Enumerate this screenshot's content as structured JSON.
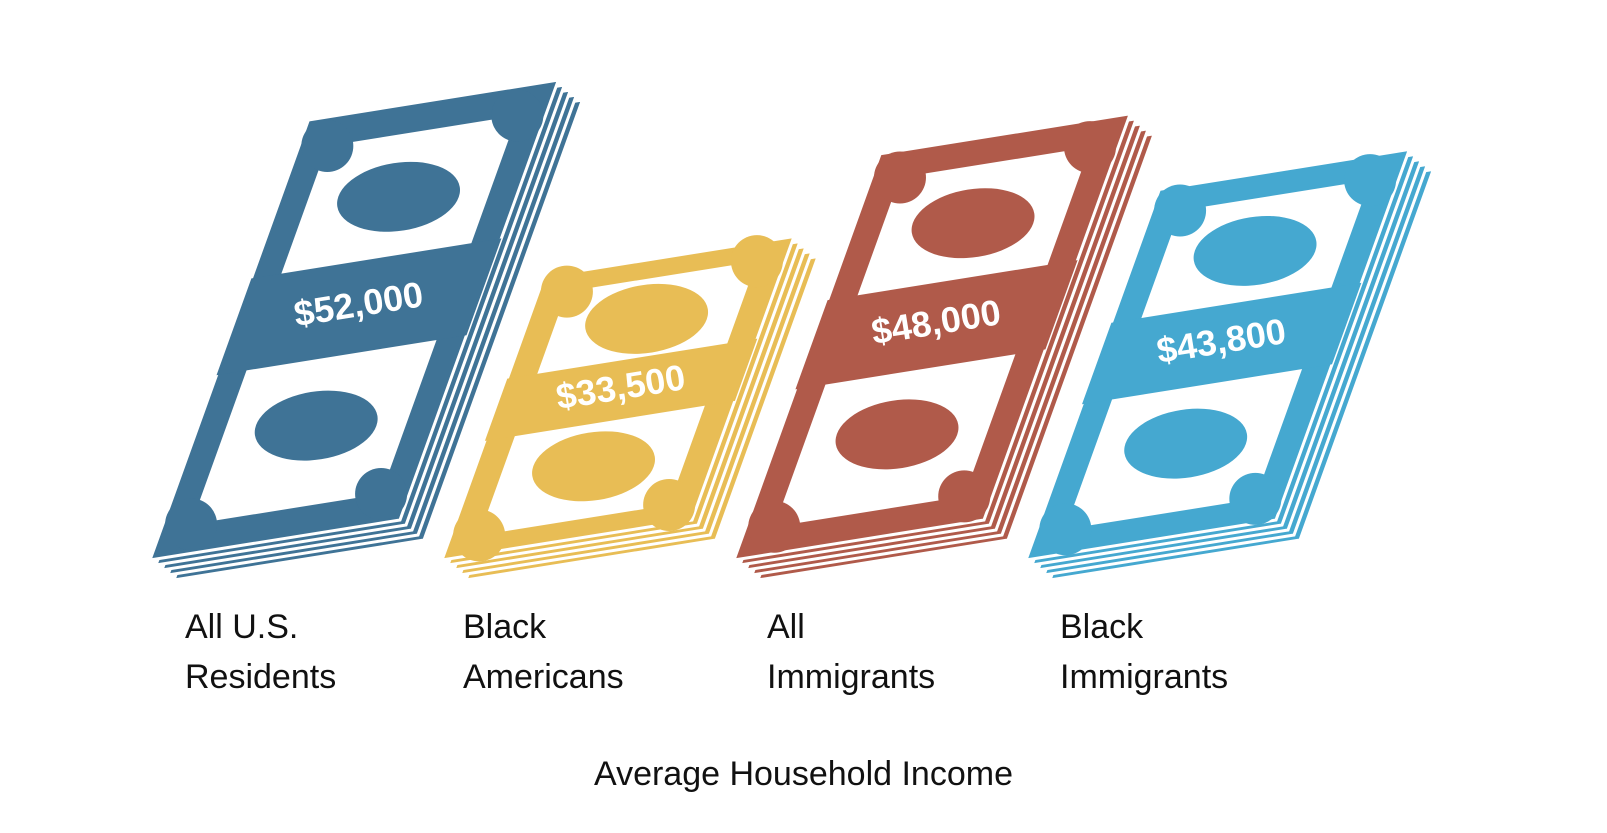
{
  "chart_data": {
    "type": "bar",
    "title": "Average Household Income",
    "categories": [
      "All U.S. Residents",
      "Black Americans",
      "All Immigrants",
      "Black Immigrants"
    ],
    "values": [
      52000,
      33500,
      48000,
      43800
    ],
    "value_labels": [
      "$52,000",
      "$33,500",
      "$48,000",
      "$43,800"
    ],
    "colors": [
      "#3f7396",
      "#e8bd55",
      "#b05a4a",
      "#45a8d0"
    ]
  }
}
